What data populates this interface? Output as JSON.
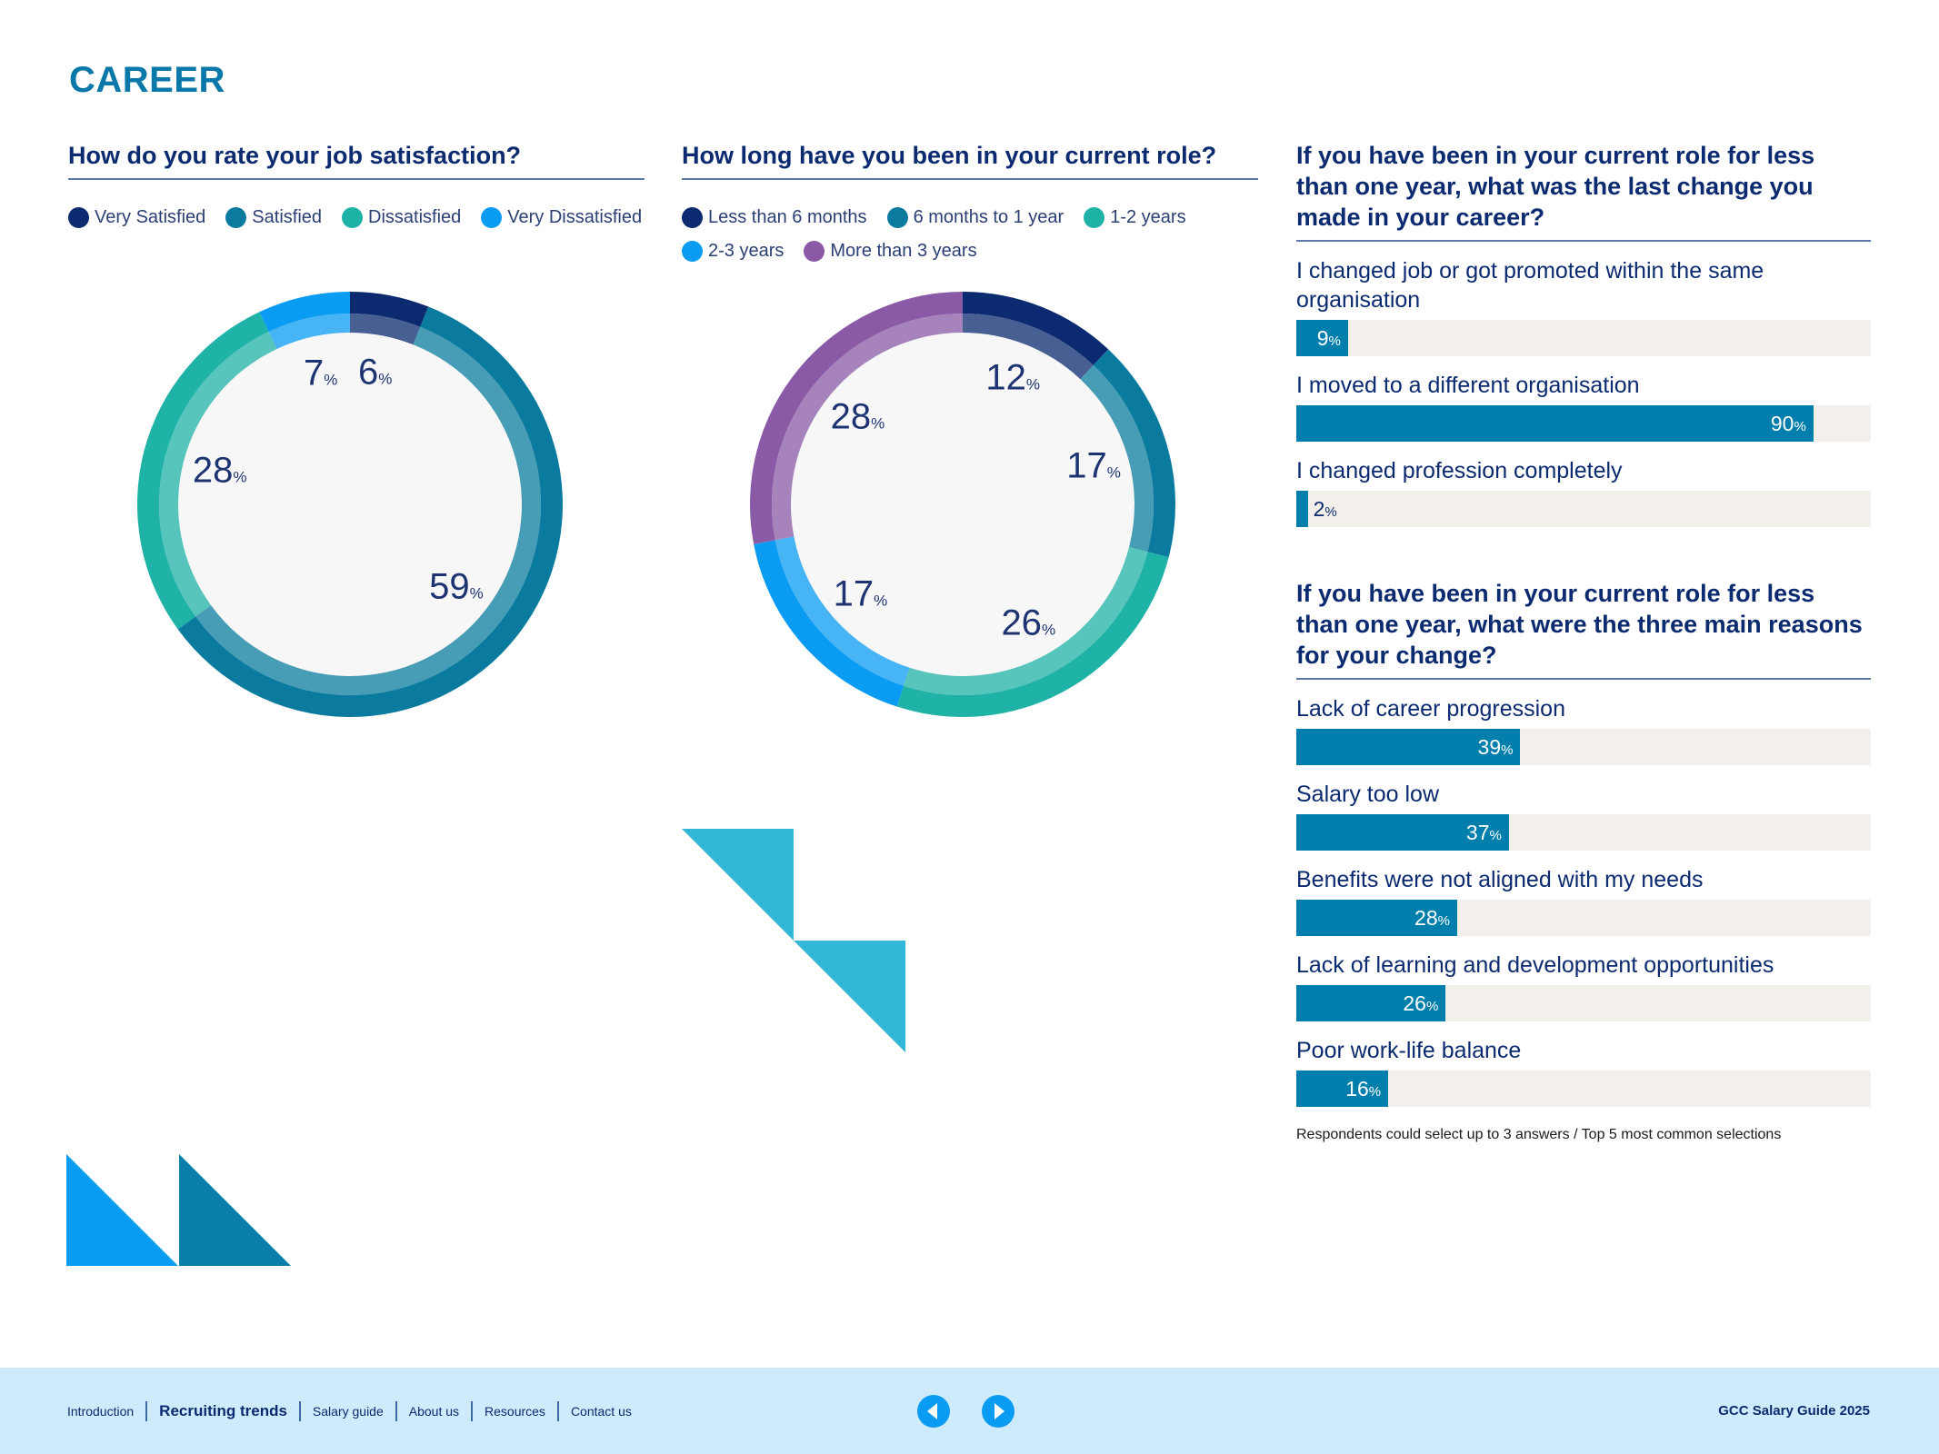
{
  "page": {
    "title": "CAREER"
  },
  "colors": {
    "very_dark_blue": "#0b2a6f",
    "teal_dark": "#007fad",
    "teal_green": "#1fb2a6",
    "bright_blue": "#0a9bf2",
    "purple": "#8a5aa6",
    "bar_track": "#f3efeb",
    "footer_bg": "#cdebfb",
    "deco_cyan": "#33b7d8"
  },
  "satisfaction": {
    "question": "How do you rate your job satisfaction?",
    "legend": [
      {
        "label": "Very Satisfied",
        "color": "#0b2a6f"
      },
      {
        "label": "Satisfied",
        "color": "#0a7b9e"
      },
      {
        "label": "Dissatisfied",
        "color": "#1fb2a6"
      },
      {
        "label": "Very Dissatisfied",
        "color": "#0a9bf2"
      }
    ]
  },
  "current_role": {
    "question": "How long have you been in your current role?",
    "legend": [
      {
        "label": "Less than 6 months",
        "color": "#0b2a6f"
      },
      {
        "label": "6 months to 1 year",
        "color": "#0a7b9e"
      },
      {
        "label": "1-2 years",
        "color": "#1fb2a6"
      },
      {
        "label": "2-3 years",
        "color": "#0a9bf2"
      },
      {
        "label": "More than 3 years",
        "color": "#8a5aa6"
      }
    ]
  },
  "last_change": {
    "question": "If you have been in your current role for less than one year, what was the last change you made in your career?"
  },
  "reasons": {
    "question": "If you have been in your current role for less than one year, what were the three main reasons for your change?",
    "footnote": "Respondents could select up to 3 answers / Top 5 most common selections"
  },
  "chart_data": [
    {
      "type": "pie",
      "title": "How do you rate your job satisfaction?",
      "categories": [
        "Very Satisfied",
        "Satisfied",
        "Dissatisfied",
        "Very Dissatisfied"
      ],
      "values": [
        6,
        59,
        28,
        7
      ],
      "unit": "%"
    },
    {
      "type": "pie",
      "title": "How long have you been in your current role?",
      "categories": [
        "Less than 6 months",
        "6 months to 1 year",
        "1-2 years",
        "2-3 years",
        "More than 3 years"
      ],
      "values": [
        12,
        17,
        26,
        17,
        28
      ],
      "unit": "%"
    },
    {
      "type": "bar",
      "title": "If you have been in your current role for less than one year, what was the last change you made in your career?",
      "categories": [
        "I changed job or got promoted within the same organisation",
        "I moved to a different organisation",
        "I changed profession completely"
      ],
      "values": [
        9,
        90,
        2
      ],
      "unit": "%",
      "ylim": [
        0,
        100
      ]
    },
    {
      "type": "bar",
      "title": "If you have been in your current role for less than one year, what were the three main reasons for your change?",
      "categories": [
        "Lack of career progression",
        "Salary too low",
        "Benefits were not aligned with my needs",
        "Lack of learning and development opportunities",
        "Poor work-life balance"
      ],
      "values": [
        39,
        37,
        28,
        26,
        16
      ],
      "unit": "%",
      "ylim": [
        0,
        100
      ]
    }
  ],
  "footer": {
    "nav": [
      {
        "label": "Introduction"
      },
      {
        "label": "Recruiting trends",
        "active": true
      },
      {
        "label": "Salary guide"
      },
      {
        "label": "About us"
      },
      {
        "label": "Resources"
      },
      {
        "label": "Contact us"
      }
    ],
    "prev_icon": "arrow-left-circle-icon",
    "next_icon": "arrow-right-circle-icon",
    "brand": "GCC Salary Guide 2025"
  }
}
